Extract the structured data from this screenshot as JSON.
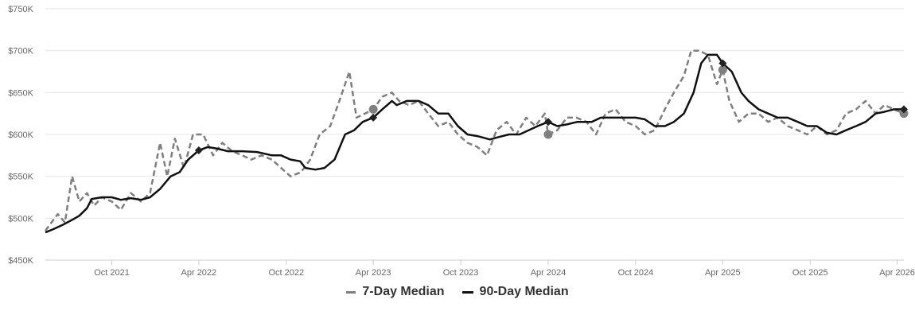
{
  "chart_data": {
    "type": "line",
    "title": "",
    "xlabel": "",
    "ylabel": "",
    "ylim": [
      450000,
      750000
    ],
    "xlim": [
      "2021-05-15",
      "2026-04-15"
    ],
    "y_ticks": [
      450000,
      500000,
      550000,
      600000,
      650000,
      700000,
      750000
    ],
    "y_tick_labels": [
      "$450K",
      "$500K",
      "$550K",
      "$600K",
      "$650K",
      "$700K",
      "$750K"
    ],
    "x_ticks": [
      "2021-10-01",
      "2022-04-01",
      "2022-10-01",
      "2023-04-01",
      "2023-10-01",
      "2024-04-01",
      "2024-10-01",
      "2025-04-01",
      "2025-10-01",
      "2026-04-01"
    ],
    "x_tick_labels": [
      "Oct 2021",
      "Apr 2022",
      "Oct 2022",
      "Apr 2023",
      "Oct 2023",
      "Apr 2024",
      "Oct 2024",
      "Apr 2025",
      "Oct 2025",
      "Apr 2026"
    ],
    "grid": true,
    "legend_position": "bottom",
    "series": [
      {
        "name": "7-Day Median",
        "style": "dashed",
        "color": "#7f7f7f",
        "points": [
          [
            "2021-05-15",
            485000
          ],
          [
            "2021-06-10",
            505000
          ],
          [
            "2021-06-25",
            495000
          ],
          [
            "2021-07-10",
            550000
          ],
          [
            "2021-07-25",
            520000
          ],
          [
            "2021-08-10",
            530000
          ],
          [
            "2021-08-25",
            515000
          ],
          [
            "2021-09-10",
            525000
          ],
          [
            "2021-10-01",
            520000
          ],
          [
            "2021-10-20",
            510000
          ],
          [
            "2021-11-10",
            530000
          ],
          [
            "2021-12-01",
            520000
          ],
          [
            "2021-12-20",
            530000
          ],
          [
            "2022-01-10",
            590000
          ],
          [
            "2022-01-25",
            550000
          ],
          [
            "2022-02-10",
            595000
          ],
          [
            "2022-03-01",
            560000
          ],
          [
            "2022-03-20",
            600000
          ],
          [
            "2022-04-10",
            600000
          ],
          [
            "2022-05-01",
            575000
          ],
          [
            "2022-05-20",
            590000
          ],
          [
            "2022-06-10",
            580000
          ],
          [
            "2022-07-01",
            575000
          ],
          [
            "2022-07-20",
            570000
          ],
          [
            "2022-08-10",
            575000
          ],
          [
            "2022-09-01",
            570000
          ],
          [
            "2022-09-20",
            560000
          ],
          [
            "2022-10-10",
            550000
          ],
          [
            "2022-11-01",
            555000
          ],
          [
            "2022-11-20",
            570000
          ],
          [
            "2022-12-10",
            600000
          ],
          [
            "2023-01-01",
            610000
          ],
          [
            "2023-01-20",
            640000
          ],
          [
            "2023-02-10",
            675000
          ],
          [
            "2023-02-25",
            620000
          ],
          [
            "2023-03-15",
            625000
          ],
          [
            "2023-04-01",
            630000
          ],
          [
            "2023-04-20",
            645000
          ],
          [
            "2023-05-10",
            650000
          ],
          [
            "2023-05-25",
            640000
          ],
          [
            "2023-06-15",
            635000
          ],
          [
            "2023-07-05",
            640000
          ],
          [
            "2023-07-25",
            625000
          ],
          [
            "2023-08-15",
            610000
          ],
          [
            "2023-09-05",
            615000
          ],
          [
            "2023-09-25",
            600000
          ],
          [
            "2023-10-15",
            590000
          ],
          [
            "2023-11-05",
            585000
          ],
          [
            "2023-11-25",
            575000
          ],
          [
            "2023-12-15",
            605000
          ],
          [
            "2024-01-05",
            615000
          ],
          [
            "2024-01-25",
            600000
          ],
          [
            "2024-02-15",
            620000
          ],
          [
            "2024-03-05",
            610000
          ],
          [
            "2024-03-25",
            625000
          ],
          [
            "2024-04-01",
            600000
          ],
          [
            "2024-04-20",
            605000
          ],
          [
            "2024-05-10",
            620000
          ],
          [
            "2024-05-30",
            620000
          ],
          [
            "2024-06-20",
            615000
          ],
          [
            "2024-07-10",
            600000
          ],
          [
            "2024-07-30",
            625000
          ],
          [
            "2024-08-20",
            630000
          ],
          [
            "2024-09-10",
            615000
          ],
          [
            "2024-10-01",
            610000
          ],
          [
            "2024-10-20",
            600000
          ],
          [
            "2024-11-10",
            605000
          ],
          [
            "2024-12-01",
            630000
          ],
          [
            "2024-12-20",
            650000
          ],
          [
            "2025-01-10",
            670000
          ],
          [
            "2025-01-25",
            700000
          ],
          [
            "2025-02-10",
            700000
          ],
          [
            "2025-03-01",
            695000
          ],
          [
            "2025-03-20",
            660000
          ],
          [
            "2025-04-01",
            677000
          ],
          [
            "2025-04-15",
            640000
          ],
          [
            "2025-05-05",
            615000
          ],
          [
            "2025-05-25",
            625000
          ],
          [
            "2025-06-15",
            625000
          ],
          [
            "2025-07-05",
            615000
          ],
          [
            "2025-07-25",
            620000
          ],
          [
            "2025-08-15",
            610000
          ],
          [
            "2025-09-05",
            605000
          ],
          [
            "2025-09-25",
            600000
          ],
          [
            "2025-10-15",
            610000
          ],
          [
            "2025-11-05",
            600000
          ],
          [
            "2025-11-25",
            605000
          ],
          [
            "2025-12-15",
            625000
          ],
          [
            "2026-01-05",
            630000
          ],
          [
            "2026-01-25",
            640000
          ],
          [
            "2026-02-15",
            625000
          ],
          [
            "2026-03-05",
            635000
          ],
          [
            "2026-03-25",
            630000
          ],
          [
            "2026-04-15",
            625000
          ]
        ],
        "markers": [
          [
            "2023-04-01",
            630000
          ],
          [
            "2024-04-01",
            600000
          ],
          [
            "2025-04-01",
            677000
          ],
          [
            "2026-04-15",
            625000
          ]
        ]
      },
      {
        "name": "90-Day Median",
        "style": "solid",
        "color": "#111111",
        "points": [
          [
            "2021-05-15",
            483000
          ],
          [
            "2021-06-01",
            487000
          ],
          [
            "2021-06-20",
            492000
          ],
          [
            "2021-07-10",
            498000
          ],
          [
            "2021-07-25",
            503000
          ],
          [
            "2021-08-10",
            512000
          ],
          [
            "2021-08-20",
            523000
          ],
          [
            "2021-09-10",
            525000
          ],
          [
            "2021-10-01",
            525000
          ],
          [
            "2021-10-20",
            522000
          ],
          [
            "2021-11-10",
            524000
          ],
          [
            "2021-12-01",
            522000
          ],
          [
            "2021-12-20",
            525000
          ],
          [
            "2022-01-10",
            535000
          ],
          [
            "2022-02-01",
            550000
          ],
          [
            "2022-02-20",
            555000
          ],
          [
            "2022-03-10",
            570000
          ],
          [
            "2022-04-01",
            581000
          ],
          [
            "2022-04-20",
            585000
          ],
          [
            "2022-05-10",
            583000
          ],
          [
            "2022-06-01",
            580000
          ],
          [
            "2022-07-01",
            580000
          ],
          [
            "2022-08-01",
            579000
          ],
          [
            "2022-09-01",
            575000
          ],
          [
            "2022-09-20",
            575000
          ],
          [
            "2022-10-10",
            570000
          ],
          [
            "2022-10-30",
            568000
          ],
          [
            "2022-11-10",
            560000
          ],
          [
            "2022-12-01",
            558000
          ],
          [
            "2022-12-20",
            560000
          ],
          [
            "2023-01-10",
            570000
          ],
          [
            "2023-02-01",
            600000
          ],
          [
            "2023-02-20",
            605000
          ],
          [
            "2023-03-10",
            615000
          ],
          [
            "2023-04-01",
            620000
          ],
          [
            "2023-04-20",
            630000
          ],
          [
            "2023-05-10",
            640000
          ],
          [
            "2023-05-20",
            635000
          ],
          [
            "2023-06-10",
            640000
          ],
          [
            "2023-07-05",
            640000
          ],
          [
            "2023-07-25",
            635000
          ],
          [
            "2023-08-15",
            625000
          ],
          [
            "2023-09-05",
            625000
          ],
          [
            "2023-09-25",
            610000
          ],
          [
            "2023-10-15",
            600000
          ],
          [
            "2023-11-05",
            598000
          ],
          [
            "2023-12-01",
            594000
          ],
          [
            "2023-12-20",
            597000
          ],
          [
            "2024-01-10",
            600000
          ],
          [
            "2024-02-01",
            600000
          ],
          [
            "2024-02-20",
            605000
          ],
          [
            "2024-03-10",
            610000
          ],
          [
            "2024-04-01",
            615000
          ],
          [
            "2024-04-20",
            610000
          ],
          [
            "2024-05-10",
            612000
          ],
          [
            "2024-06-01",
            615000
          ],
          [
            "2024-07-01",
            615000
          ],
          [
            "2024-07-20",
            620000
          ],
          [
            "2024-08-20",
            620000
          ],
          [
            "2024-09-10",
            620000
          ],
          [
            "2024-10-01",
            620000
          ],
          [
            "2024-10-20",
            618000
          ],
          [
            "2024-11-10",
            610000
          ],
          [
            "2024-12-01",
            610000
          ],
          [
            "2024-12-20",
            615000
          ],
          [
            "2025-01-10",
            625000
          ],
          [
            "2025-01-30",
            650000
          ],
          [
            "2025-02-15",
            685000
          ],
          [
            "2025-03-01",
            695000
          ],
          [
            "2025-03-20",
            695000
          ],
          [
            "2025-04-01",
            685000
          ],
          [
            "2025-04-20",
            675000
          ],
          [
            "2025-05-10",
            650000
          ],
          [
            "2025-05-25",
            640000
          ],
          [
            "2025-06-15",
            630000
          ],
          [
            "2025-07-05",
            625000
          ],
          [
            "2025-07-25",
            620000
          ],
          [
            "2025-08-15",
            620000
          ],
          [
            "2025-09-05",
            615000
          ],
          [
            "2025-09-25",
            610000
          ],
          [
            "2025-10-15",
            610000
          ],
          [
            "2025-11-05",
            602000
          ],
          [
            "2025-11-25",
            600000
          ],
          [
            "2025-12-15",
            605000
          ],
          [
            "2026-01-05",
            610000
          ],
          [
            "2026-01-25",
            615000
          ],
          [
            "2026-02-15",
            625000
          ],
          [
            "2026-03-05",
            627000
          ],
          [
            "2026-03-25",
            630000
          ],
          [
            "2026-04-15",
            630000
          ]
        ],
        "markers": [
          [
            "2022-04-01",
            581000
          ],
          [
            "2023-04-01",
            620000
          ],
          [
            "2024-04-01",
            615000
          ],
          [
            "2025-04-01",
            685000
          ],
          [
            "2026-04-15",
            630000
          ]
        ]
      }
    ]
  },
  "legend": {
    "items": [
      {
        "label": "7-Day Median"
      },
      {
        "label": "90-Day Median"
      }
    ]
  }
}
